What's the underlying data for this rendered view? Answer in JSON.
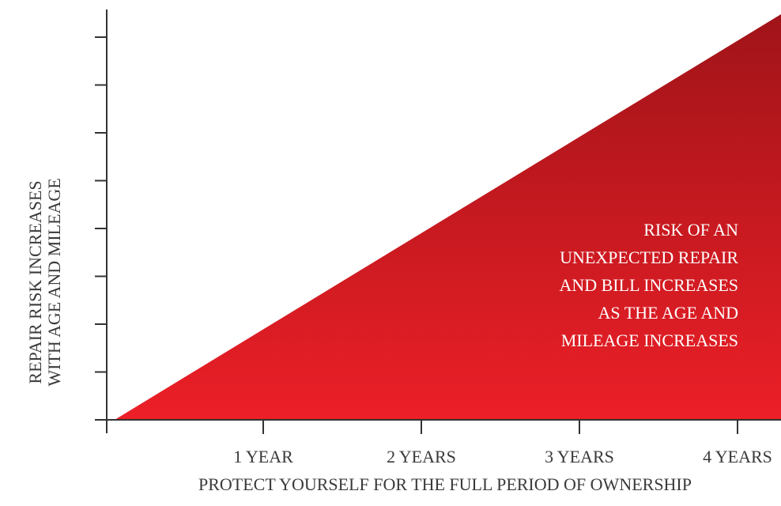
{
  "chart_data": {
    "type": "area",
    "x_categories": [
      "1 YEAR",
      "2 YEARS",
      "3 YEARS",
      "4 YEARS"
    ],
    "xlabel": "PROTECT YOURSELF FOR THE FULL PERIOD OF OWNERSHIP",
    "ylabel": [
      "REPAIR RISK INCREASES",
      "WITH AGE AND MILEAGE"
    ],
    "y_tick_count": 9,
    "annotation": [
      "RISK OF AN",
      "UNEXPECTED REPAIR",
      "AND BILL INCREASES",
      "AS THE AGE AND",
      "MILEAGE INCREASES"
    ],
    "series": [
      {
        "x": [
          0,
          4.25
        ],
        "y": [
          0,
          1
        ]
      }
    ],
    "fill_colors": {
      "top": "#a01419",
      "bottom": "#ec1f27"
    },
    "axis_color": "#333333"
  }
}
